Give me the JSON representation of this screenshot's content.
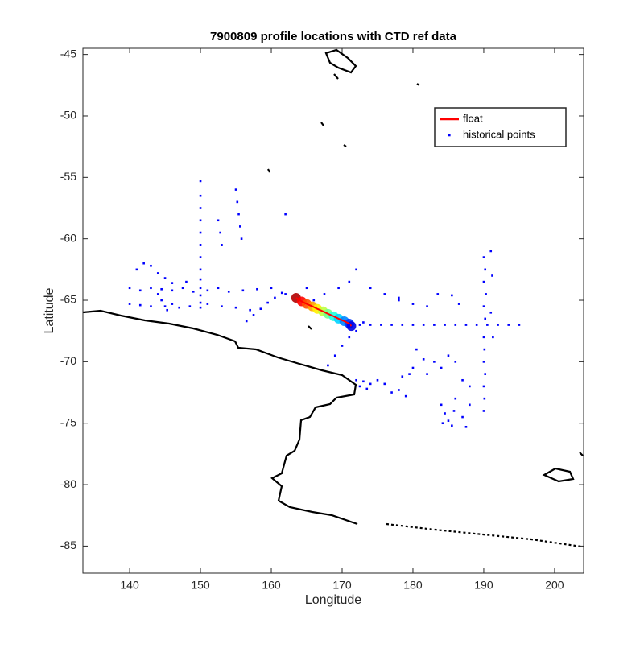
{
  "chart_data": {
    "type": "scatter",
    "title": "7900809 profile locations with CTD ref data",
    "xlabel": "Longitude",
    "ylabel": "Latitude",
    "xlim": [
      133.4,
      204.1
    ],
    "ylim": [
      -87.2,
      -44.5
    ],
    "xticks": [
      140,
      150,
      160,
      170,
      180,
      190,
      200
    ],
    "yticks": [
      -85,
      -80,
      -75,
      -70,
      -65,
      -60,
      -55,
      -50,
      -45
    ],
    "legend": "northeast",
    "series": [
      {
        "name": "float",
        "color": "#ff0000",
        "mode": "line",
        "x": [
          163.5,
          164.3,
          165,
          165.8,
          166.5,
          167.3,
          168,
          168.8,
          169.5,
          170.3,
          171,
          171.3
        ],
        "values": [
          -64.8,
          -65.1,
          -65.3,
          -65.5,
          -65.7,
          -65.9,
          -66.1,
          -66.3,
          -66.5,
          -66.7,
          -66.9,
          -67.1
        ]
      },
      {
        "name": "historical points",
        "color": "#0000ff",
        "mode": "markers",
        "x": [
          150,
          150,
          150,
          150,
          150,
          150,
          150,
          150,
          150,
          150,
          150,
          150,
          150,
          155,
          155.2,
          155.4,
          155.6,
          155.8,
          152.5,
          152.8,
          153,
          140,
          141.5,
          143,
          144.5,
          146,
          147.5,
          149,
          151,
          152.5,
          154,
          156,
          158,
          160,
          162,
          140,
          141.5,
          143,
          146,
          147,
          148.5,
          151,
          153,
          155,
          157,
          141,
          142,
          143,
          144,
          145,
          146,
          148,
          144,
          144.5,
          145,
          145.3,
          156.5,
          157.5,
          158.5,
          159.5,
          160.5,
          161.5,
          165,
          166,
          167.5,
          169.5,
          172,
          171,
          174,
          176,
          178,
          180,
          182,
          171,
          172.5,
          174,
          175.5,
          177,
          178.5,
          180,
          181.5,
          183,
          184.5,
          186,
          187.5,
          189,
          190.5,
          192,
          193.5,
          195,
          190,
          190.2,
          190,
          190.3,
          190,
          190.2,
          190,
          190.1,
          190,
          190.2,
          190,
          190.1,
          190,
          191,
          191.2,
          191,
          191.3,
          168,
          169,
          170,
          171,
          172,
          173,
          172,
          172.5,
          173,
          173.5,
          174,
          175,
          176,
          177,
          178,
          179,
          178.5,
          179.5,
          180,
          180.5,
          181.5,
          182,
          183,
          184,
          185,
          186,
          187,
          188,
          184,
          184.5,
          185,
          185.5,
          184.2,
          185.8,
          186,
          187,
          187.5,
          188,
          178,
          183.5,
          185.5,
          186.5,
          162
        ],
        "values": [
          -55.3,
          -56.5,
          -57.5,
          -58.5,
          -59.5,
          -60.5,
          -61.5,
          -62.5,
          -63.3,
          -64,
          -64.6,
          -65.2,
          -65.6,
          -56,
          -57,
          -58,
          -59,
          -60,
          -58.5,
          -59.5,
          -60.5,
          -64,
          -64.2,
          -64,
          -64.1,
          -64.2,
          -64,
          -64.3,
          -64.2,
          -64,
          -64.3,
          -64.2,
          -64.1,
          -64,
          -64.5,
          -65.3,
          -65.4,
          -65.5,
          -65.3,
          -65.6,
          -65.5,
          -65.3,
          -65.5,
          -65.6,
          -65.8,
          -62.5,
          -62,
          -62.2,
          -62.8,
          -63.2,
          -63.6,
          -63.5,
          -64.5,
          -65,
          -65.5,
          -65.8,
          -66.7,
          -66.2,
          -65.7,
          -65.2,
          -64.8,
          -64.4,
          -64,
          -65,
          -64.5,
          -64,
          -62.5,
          -63.5,
          -64,
          -64.5,
          -65,
          -65.3,
          -65.5,
          -67,
          -67,
          -67,
          -67,
          -67,
          -67,
          -67,
          -67,
          -67,
          -67,
          -67,
          -67,
          -67,
          -67,
          -67,
          -67,
          -67,
          -61.5,
          -62.5,
          -63.5,
          -64.5,
          -65.5,
          -66.5,
          -68,
          -69,
          -70,
          -71,
          -72,
          -73,
          -74,
          -61,
          -63,
          -66,
          -68,
          -70.3,
          -69.5,
          -68.7,
          -68,
          -67.5,
          -66.8,
          -71.5,
          -72,
          -71.6,
          -72.2,
          -71.8,
          -71.5,
          -71.8,
          -72.5,
          -72.3,
          -72.8,
          -71.2,
          -71,
          -70.5,
          -69,
          -69.8,
          -71,
          -70,
          -70.5,
          -69.5,
          -70,
          -71.5,
          -72,
          -73.5,
          -74.2,
          -74.8,
          -75.2,
          -75,
          -74,
          -73,
          -74.5,
          -75.3,
          -73.5,
          -64.8,
          -64.5,
          -64.6,
          -65.3,
          -58
        ]
      }
    ]
  }
}
